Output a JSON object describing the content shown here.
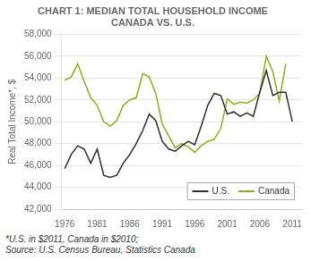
{
  "chart_data": {
    "type": "line",
    "title": [
      "CHART 1: MEDIAN TOTAL HOUSEHOLD INCOME",
      "CANADA VS. U.S."
    ],
    "ylabel": "Real Total Income*, $",
    "annotations": [
      "*U.S. in $2011, Canada in $2010;",
      "Source: U.S. Census Bureau, Statistics Canada"
    ],
    "x": [
      1976,
      1977,
      1978,
      1979,
      1980,
      1981,
      1982,
      1983,
      1984,
      1985,
      1986,
      1987,
      1988,
      1989,
      1990,
      1991,
      1992,
      1993,
      1994,
      1995,
      1996,
      1997,
      1998,
      1999,
      2000,
      2001,
      2002,
      2003,
      2004,
      2005,
      2006,
      2007,
      2008,
      2009,
      2010,
      2011
    ],
    "series": [
      {
        "name": "U.S.",
        "color": "#2d2d2d",
        "values": [
          45700,
          47000,
          47800,
          47500,
          46200,
          47500,
          45100,
          44900,
          45100,
          46200,
          47000,
          48000,
          49200,
          50700,
          50100,
          48200,
          47500,
          47300,
          47800,
          48200,
          47900,
          49600,
          51500,
          52600,
          52400,
          50700,
          50900,
          50500,
          50800,
          50500,
          52700,
          54700,
          52400,
          52700,
          52700,
          50000
        ]
      },
      {
        "name": "Canada",
        "color": "#8db012",
        "values": [
          53800,
          54100,
          55300,
          53700,
          52200,
          51500,
          50000,
          49600,
          50100,
          51500,
          52000,
          52200,
          54400,
          54100,
          52600,
          49800,
          48700,
          47600,
          48000,
          47700,
          47200,
          47800,
          48200,
          48400,
          49400,
          52100,
          51600,
          51800,
          51700,
          52000,
          52600,
          56000,
          54600,
          51900,
          55300,
          null
        ]
      }
    ],
    "xlim": [
      1975.5,
      2012.5
    ],
    "xticks": [
      1976,
      1981,
      1986,
      1991,
      1996,
      2001,
      2006,
      2011
    ],
    "ylim": [
      42000,
      58000
    ],
    "yticks": [
      {
        "value": 42000,
        "label": "42,000"
      },
      {
        "value": 44000,
        "label": "44,000"
      },
      {
        "value": 46000,
        "label": "46,000"
      },
      {
        "value": 48000,
        "label": "48,000"
      },
      {
        "value": 50000,
        "label": "50,000"
      },
      {
        "value": 52000,
        "label": "52,000"
      },
      {
        "value": 54000,
        "label": "54,000"
      },
      {
        "value": 56000,
        "label": "56,000"
      },
      {
        "value": 58000,
        "label": "58,000"
      }
    ],
    "grid": true,
    "legend": "lower right"
  }
}
